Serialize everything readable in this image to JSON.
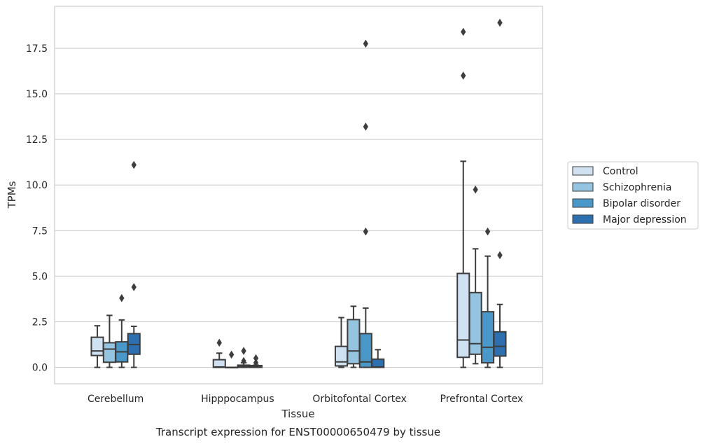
{
  "chart_data": {
    "type": "box",
    "title": "Transcript expression for ENST00000650479 by tissue",
    "xlabel": "Tissue",
    "ylabel": "TPMs",
    "ylim": [
      -0.9,
      19.8
    ],
    "yticks": [
      0.0,
      2.5,
      5.0,
      7.5,
      10.0,
      12.5,
      15.0,
      17.5
    ],
    "ytick_labels": [
      "0.0",
      "2.5",
      "5.0",
      "7.5",
      "10.0",
      "12.5",
      "15.0",
      "17.5"
    ],
    "grid": "horizontal",
    "legend_position": "right",
    "categories": [
      "Cerebellum",
      "Hipppocampus",
      "Orbitofontal Cortex",
      "Prefrontal Cortex"
    ],
    "series": [
      {
        "name": "Control",
        "color": "#d0e1f2",
        "boxes": [
          {
            "whislo": 0.0,
            "q1": 0.65,
            "med": 0.9,
            "q3": 1.65,
            "whishi": 2.28,
            "fliers": []
          },
          {
            "whislo": 0.0,
            "q1": 0.0,
            "med": 0.02,
            "q3": 0.42,
            "whishi": 0.78,
            "fliers": [
              1.35
            ]
          },
          {
            "whislo": 0.0,
            "q1": 0.08,
            "med": 0.3,
            "q3": 1.15,
            "whishi": 2.73,
            "fliers": []
          },
          {
            "whislo": 0.0,
            "q1": 0.55,
            "med": 1.5,
            "q3": 5.15,
            "whishi": 11.3,
            "fliers": [
              16.0,
              18.4
            ]
          }
        ]
      },
      {
        "name": "Schizophrenia",
        "color": "#94c4df",
        "boxes": [
          {
            "whislo": 0.0,
            "q1": 0.28,
            "med": 1.0,
            "q3": 1.35,
            "whishi": 2.85,
            "fliers": []
          },
          {
            "whislo": 0.0,
            "q1": 0.0,
            "med": 0.0,
            "q3": 0.0,
            "whishi": 0.0,
            "fliers": [
              0.7
            ]
          },
          {
            "whislo": 0.0,
            "q1": 0.2,
            "med": 0.9,
            "q3": 2.62,
            "whishi": 3.35,
            "fliers": []
          },
          {
            "whislo": 0.2,
            "q1": 0.72,
            "med": 1.3,
            "q3": 4.1,
            "whishi": 6.5,
            "fliers": [
              9.75
            ]
          }
        ]
      },
      {
        "name": "Bipolar disorder",
        "color": "#4a98c9",
        "boxes": [
          {
            "whislo": 0.0,
            "q1": 0.3,
            "med": 0.85,
            "q3": 1.4,
            "whishi": 2.6,
            "fliers": [
              3.8
            ]
          },
          {
            "whislo": 0.0,
            "q1": 0.0,
            "med": 0.05,
            "q3": 0.12,
            "whishi": 0.25,
            "fliers": [
              0.35,
              0.9
            ]
          },
          {
            "whislo": 0.0,
            "q1": 0.0,
            "med": 0.3,
            "q3": 1.85,
            "whishi": 3.25,
            "fliers": [
              7.45,
              13.2,
              17.75
            ]
          },
          {
            "whislo": 0.0,
            "q1": 0.25,
            "med": 1.1,
            "q3": 3.05,
            "whishi": 6.1,
            "fliers": [
              7.45
            ]
          }
        ]
      },
      {
        "name": "Major depression",
        "color": "#2e6faf",
        "boxes": [
          {
            "whislo": 0.0,
            "q1": 0.72,
            "med": 1.25,
            "q3": 1.85,
            "whishi": 2.25,
            "fliers": [
              4.4,
              11.1
            ]
          },
          {
            "whislo": 0.0,
            "q1": 0.0,
            "med": 0.05,
            "q3": 0.1,
            "whishi": 0.12,
            "fliers": [
              0.25,
              0.5
            ]
          },
          {
            "whislo": 0.0,
            "q1": 0.0,
            "med": 0.02,
            "q3": 0.45,
            "whishi": 0.97,
            "fliers": []
          },
          {
            "whislo": 0.0,
            "q1": 0.62,
            "med": 1.15,
            "q3": 1.95,
            "whishi": 3.45,
            "fliers": [
              6.15,
              18.9
            ]
          }
        ]
      }
    ]
  }
}
